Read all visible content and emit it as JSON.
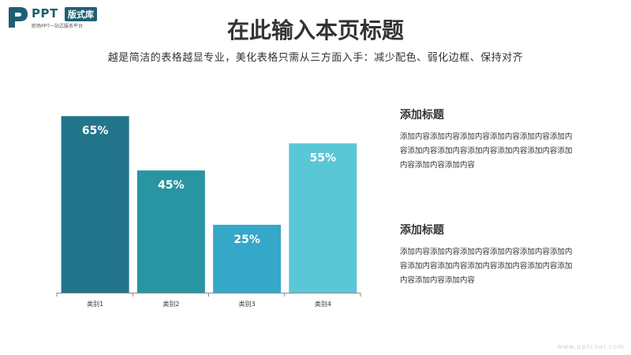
{
  "logo": {
    "text": "PPT",
    "badge": "版式库",
    "tagline": "职场PPT一站式服务平台",
    "color": "#1f5f73"
  },
  "header": {
    "title": "在此输入本页标题",
    "subtitle": "越是简洁的表格越显专业，美化表格只需从三方面入手：减少配色、弱化边框、保持对齐"
  },
  "chart_data": {
    "type": "bar",
    "categories": [
      "类别1",
      "类别2",
      "类别3",
      "类别4"
    ],
    "values": [
      65,
      45,
      25,
      55
    ],
    "value_labels": [
      "65%",
      "45%",
      "25%",
      "55%"
    ],
    "colors": [
      "#23758b",
      "#2a95a2",
      "#35a7c9",
      "#5ac7d6"
    ],
    "ylim": [
      0,
      70
    ],
    "title": "",
    "xlabel": "",
    "ylabel": "",
    "grid": false
  },
  "sidebar": {
    "blocks": [
      {
        "heading": "添加标题",
        "body": "添加内容添加内容添加内容添加内容添加内容添加内容添加内容添加内容添加内容添加内容添加内容添加内容添加内容添加内容"
      },
      {
        "heading": "添加标题",
        "body": "添加内容添加内容添加内容添加内容添加内容添加内容添加内容添加内容添加内容添加内容添加内容添加内容添加内容添加内容"
      }
    ]
  },
  "watermark": "www.pptcool.com"
}
